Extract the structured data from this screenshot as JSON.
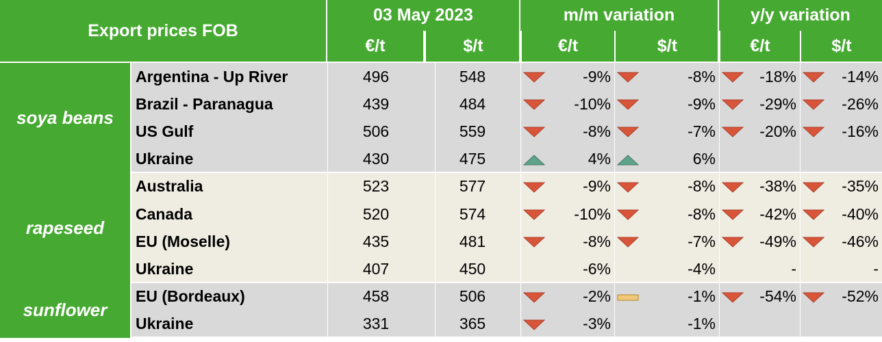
{
  "header": {
    "title": "Export prices FOB",
    "date": "03 May 2023",
    "mm": "m/m variation",
    "yy": "y/y variation",
    "units": [
      "€/t",
      "$/t",
      "€/t",
      "$/t",
      "€/t",
      "$/t"
    ]
  },
  "groups": [
    {
      "name": "soya beans",
      "rows": [
        {
          "origin": "Argentina - Up River",
          "cells": [
            496,
            548,
            "-9%",
            "-8%",
            "-18%",
            "-14%"
          ]
        },
        {
          "origin": "Brazil - Paranagua",
          "cells": [
            439,
            484,
            "-10%",
            "-9%",
            "-29%",
            "-26%"
          ]
        },
        {
          "origin": "US Gulf",
          "cells": [
            506,
            559,
            "-8%",
            "-7%",
            "-20%",
            "-16%"
          ]
        },
        {
          "origin": "Ukraine",
          "cells": [
            430,
            475,
            "4%",
            "6%",
            null,
            null
          ]
        }
      ]
    },
    {
      "name": "rapeseed",
      "rows": [
        {
          "origin": "Australia",
          "cells": [
            523,
            577,
            "-9%",
            "-8%",
            "-38%",
            "-35%"
          ]
        },
        {
          "origin": "Canada",
          "cells": [
            520,
            574,
            "-10%",
            "-8%",
            "-42%",
            "-40%"
          ]
        },
        {
          "origin": "EU (Moselle)",
          "cells": [
            435,
            481,
            "-8%",
            "-7%",
            "-49%",
            "-46%"
          ]
        },
        {
          "origin": "Ukraine",
          "cells": [
            407,
            450,
            "-6%",
            "-4%",
            "-",
            "-"
          ]
        }
      ]
    },
    {
      "name": "sunflower",
      "rows": [
        {
          "origin": "EU (Bordeaux)",
          "cells": [
            458,
            506,
            "-2%",
            "-1%",
            "-54%",
            "-52%"
          ]
        },
        {
          "origin": "Ukraine",
          "cells": [
            331,
            365,
            "-3%",
            "-1%",
            null,
            null
          ]
        }
      ]
    }
  ]
}
